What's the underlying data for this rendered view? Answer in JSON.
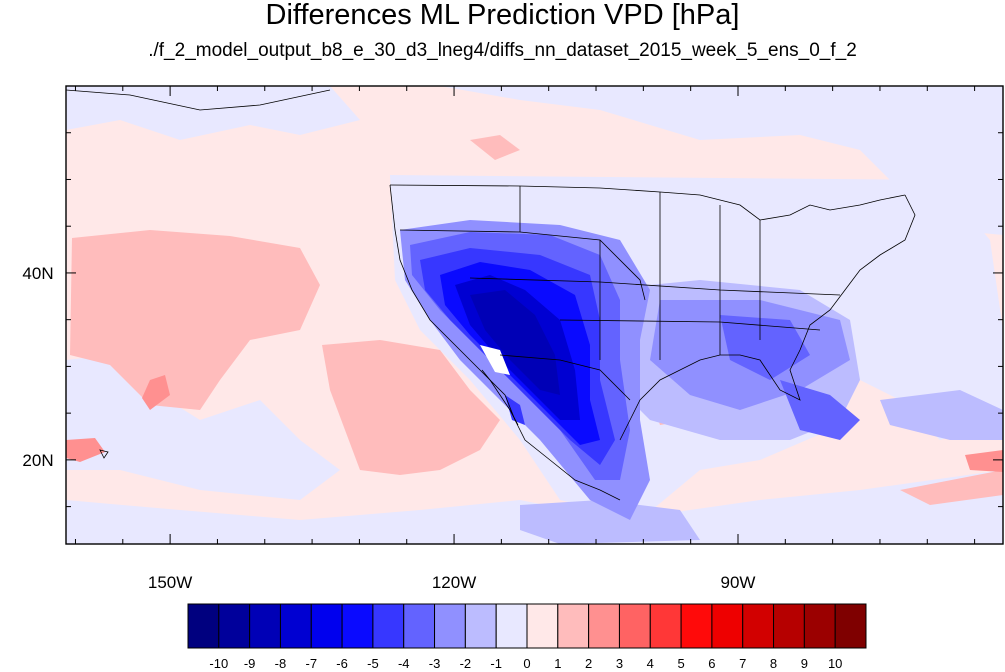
{
  "title": "Differences ML Prediction VPD [hPa]",
  "subtitle": "./f_2_model_output_b8_e_30_d3_lneg4/diffs_nn_dataset_2015_week_5_ens_0_f_2",
  "map": {
    "lon_range": [
      -161,
      -62
    ],
    "lat_range": [
      11,
      60
    ],
    "x_ticks": [
      {
        "lon": -150,
        "label": "150W"
      },
      {
        "lon": -120,
        "label": "120W"
      },
      {
        "lon": -90,
        "label": "90W"
      }
    ],
    "y_ticks": [
      {
        "lat": 40,
        "label": "40N"
      },
      {
        "lat": 20,
        "label": "20N"
      }
    ]
  },
  "colorbar": {
    "labels": [
      "-10",
      "-9",
      "-8",
      "-7",
      "-6",
      "-5",
      "-4",
      "-3",
      "-2",
      "-1",
      "0",
      "1",
      "2",
      "3",
      "4",
      "5",
      "6",
      "7",
      "8",
      "9",
      "10"
    ],
    "colors": [
      "#00007f",
      "#00009b",
      "#0000b6",
      "#0000d2",
      "#0000ee",
      "#0a0aff",
      "#3737ff",
      "#6363ff",
      "#9090ff",
      "#bcbcff",
      "#e8e8ff",
      "#ffe8e8",
      "#ffbcbc",
      "#ff9090",
      "#ff6363",
      "#ff3737",
      "#ff0a0a",
      "#ee0000",
      "#d20000",
      "#b60000",
      "#9b0000",
      "#7f0000"
    ]
  }
}
